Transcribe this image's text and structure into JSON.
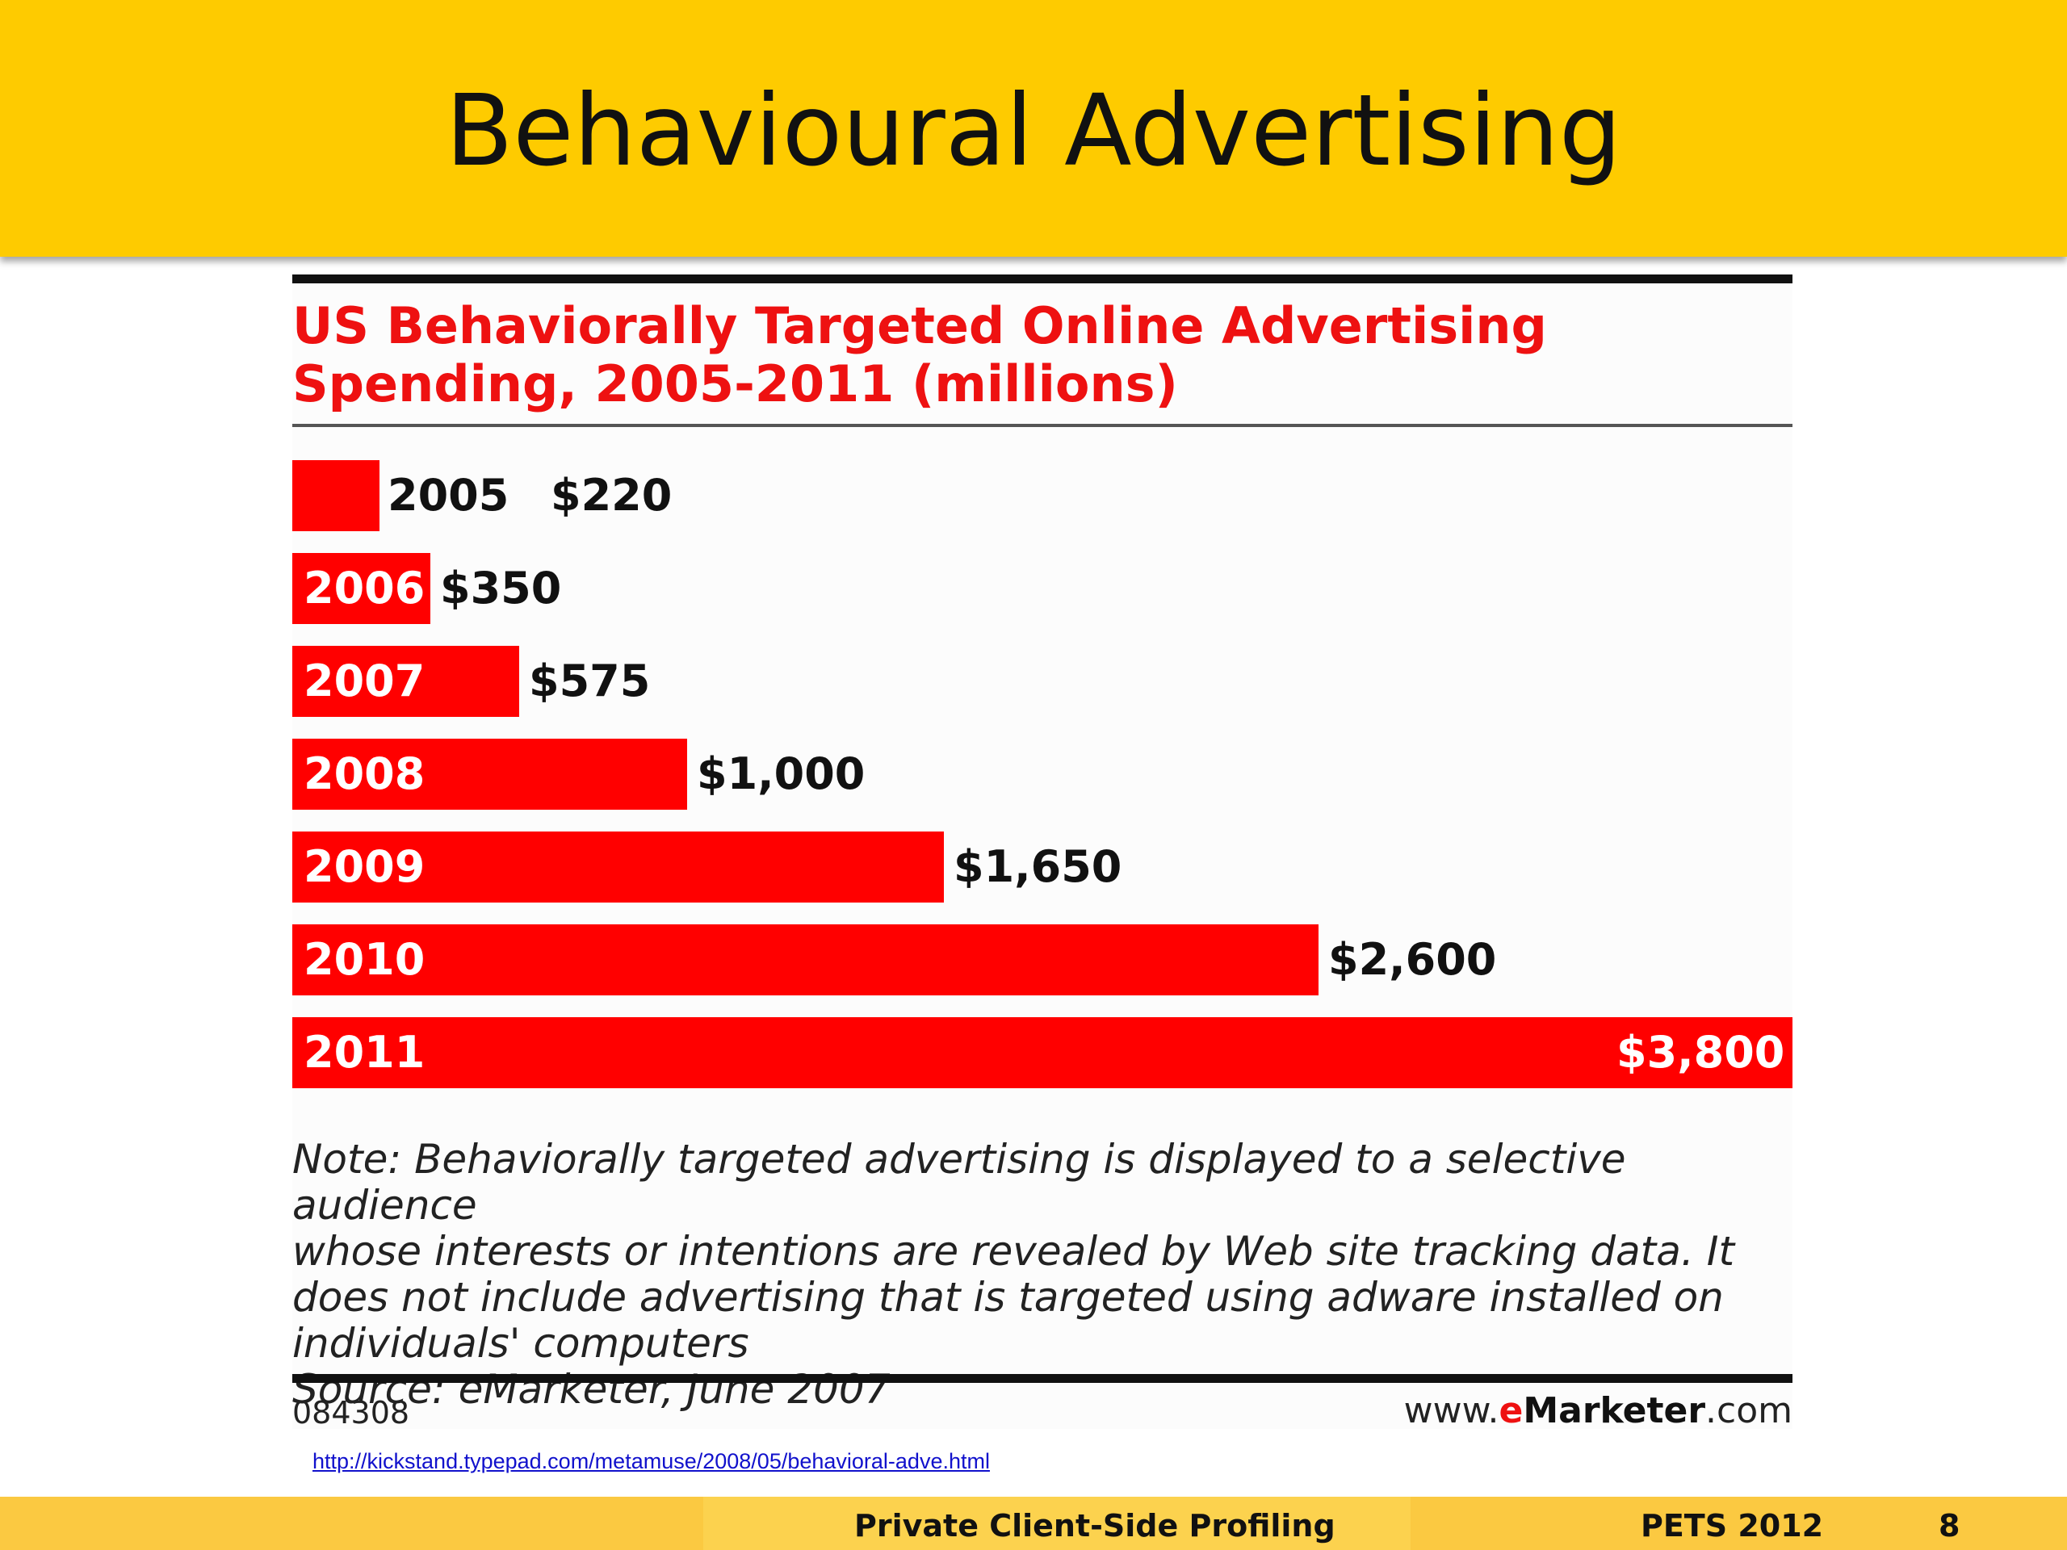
{
  "slide": {
    "title": "Behavioural Advertising",
    "link": "http://kickstand.typepad.com/metamuse/2008/05/behavioral-adve.html",
    "footer": {
      "center": "Private Client-Side Profiling",
      "venue": "PETS 2012",
      "page": "8"
    }
  },
  "chart_data": {
    "type": "bar",
    "orientation": "horizontal",
    "title_lines": [
      "US Behaviorally Targeted Online Advertising",
      "Spending, 2005-2011 (millions)"
    ],
    "categories": [
      "2005",
      "2006",
      "2007",
      "2008",
      "2009",
      "2010",
      "2011"
    ],
    "values": [
      220,
      350,
      575,
      1000,
      1650,
      2600,
      3800
    ],
    "value_labels": [
      "$220",
      "$350",
      "$575",
      "$1,000",
      "$1,650",
      "$2,600",
      "$3,800"
    ],
    "xlim": [
      0,
      3800
    ],
    "grid": false,
    "colors": {
      "bar": "#ff0000",
      "title": "#ee1111"
    },
    "note_lines": [
      "Note: Behaviorally targeted advertising is displayed to a selective audience",
      "whose interests or intentions are revealed by Web site tracking data. It",
      "does not include advertising that is targeted using adware installed on",
      "individuals' computers",
      "Source: eMarketer, June 2007"
    ],
    "chart_id": "084308",
    "site": {
      "prefix": "www.",
      "brand": "e",
      "brand_rest": "Marketer",
      "suffix": ".com"
    }
  }
}
